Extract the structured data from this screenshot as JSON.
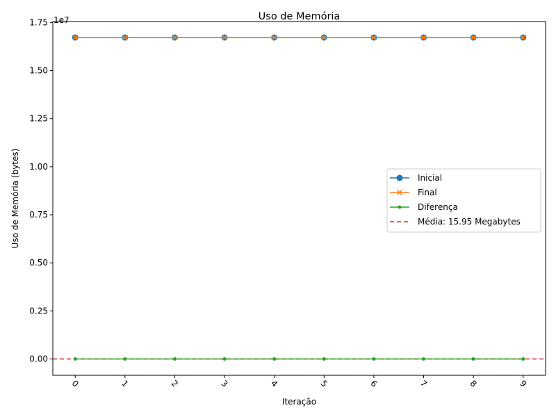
{
  "chart_data": {
    "type": "line",
    "title": "Uso de Memória",
    "xlabel": "Iteração",
    "ylabel": "Uso de Memória (bytes)",
    "y_scale_label": "1e7",
    "x": [
      0,
      1,
      2,
      3,
      4,
      5,
      6,
      7,
      8,
      9
    ],
    "x_tick_labels": [
      "0",
      "1",
      "2",
      "3",
      "4",
      "5",
      "6",
      "7",
      "8",
      "9"
    ],
    "xlim": [
      -0.45,
      9.45
    ],
    "ylim": [
      -850000,
      17550000
    ],
    "y_ticks": [
      0,
      2500000,
      5000000,
      7500000,
      10000000,
      12500000,
      15000000,
      17500000
    ],
    "y_tick_labels": [
      "0.00",
      "0.25",
      "0.50",
      "0.75",
      "1.00",
      "1.25",
      "1.50",
      "1.75"
    ],
    "series": [
      {
        "name": "Inicial",
        "marker": "circle",
        "color": "#1f77b4",
        "values": [
          16720000,
          16720000,
          16720000,
          16720000,
          16720000,
          16720000,
          16720000,
          16720000,
          16720000,
          16720000
        ]
      },
      {
        "name": "Final",
        "marker": "x",
        "color": "#ff7f0e",
        "values": [
          16720000,
          16720000,
          16720000,
          16720000,
          16720000,
          16720000,
          16720000,
          16720000,
          16720000,
          16720000
        ]
      },
      {
        "name": "Diferença",
        "marker": "dot",
        "color": "#2ca02c",
        "values": [
          0,
          0,
          0,
          0,
          0,
          0,
          0,
          0,
          0,
          0
        ]
      }
    ],
    "hline": {
      "name": "Média: 15.95 Megabytes",
      "value": 0,
      "color": "#d62728",
      "style": "dashed"
    },
    "legend": {
      "placement": "center-right",
      "entries": [
        "Inicial",
        "Final",
        "Diferença",
        "Média: 15.95 Megabytes"
      ]
    },
    "grid": false
  }
}
